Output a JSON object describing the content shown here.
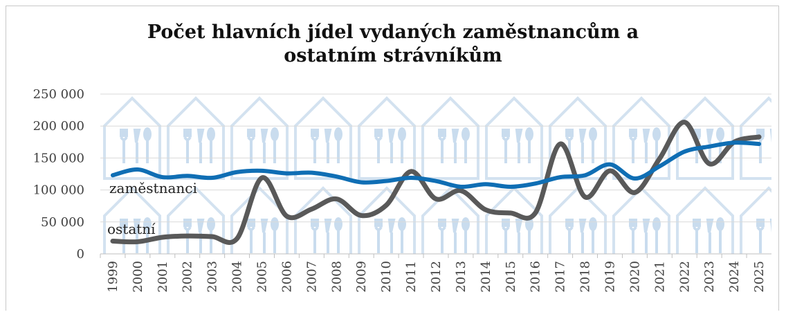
{
  "chart_data": {
    "type": "line",
    "title": "Počet hlavních jídel vydaných zaměstnancům a ostatním strávníkům",
    "categories": [
      "1999",
      "2000",
      "2001",
      "2002",
      "2003",
      "2004",
      "2005",
      "2006",
      "2007",
      "2008",
      "2009",
      "2010",
      "2011",
      "2012",
      "2013",
      "2014",
      "2015",
      "2016",
      "2017",
      "2018",
      "2019",
      "2020",
      "2021",
      "2022",
      "2023",
      "2024",
      "2025"
    ],
    "series": [
      {
        "name": "zaměstnanci",
        "color": "#0f6eb4",
        "values": [
          123000,
          132000,
          120000,
          122000,
          119000,
          128000,
          130000,
          126000,
          127000,
          121000,
          112000,
          114000,
          119000,
          114000,
          105000,
          109000,
          105000,
          110000,
          120000,
          123000,
          140000,
          118000,
          137000,
          160000,
          168000,
          174000,
          172000
        ]
      },
      {
        "name": "ostatní",
        "color": "#595959",
        "values": [
          20000,
          19000,
          26000,
          28000,
          27000,
          24000,
          119000,
          59000,
          70000,
          86000,
          60000,
          76000,
          129000,
          86000,
          99000,
          69000,
          64000,
          64000,
          172000,
          89000,
          130000,
          96000,
          149000,
          206000,
          141000,
          175000,
          183000
        ]
      }
    ],
    "ylim": [
      0,
      250000
    ],
    "yticks": [
      0,
      {
        "value": 50000,
        "label": "50 000"
      },
      {
        "value": 100000,
        "label": "100 000"
      },
      {
        "value": 150000,
        "label": "150 000"
      },
      {
        "value": 200000,
        "label": "200 000"
      },
      {
        "value": 250000,
        "label": "250 000"
      }
    ],
    "grid": true
  }
}
